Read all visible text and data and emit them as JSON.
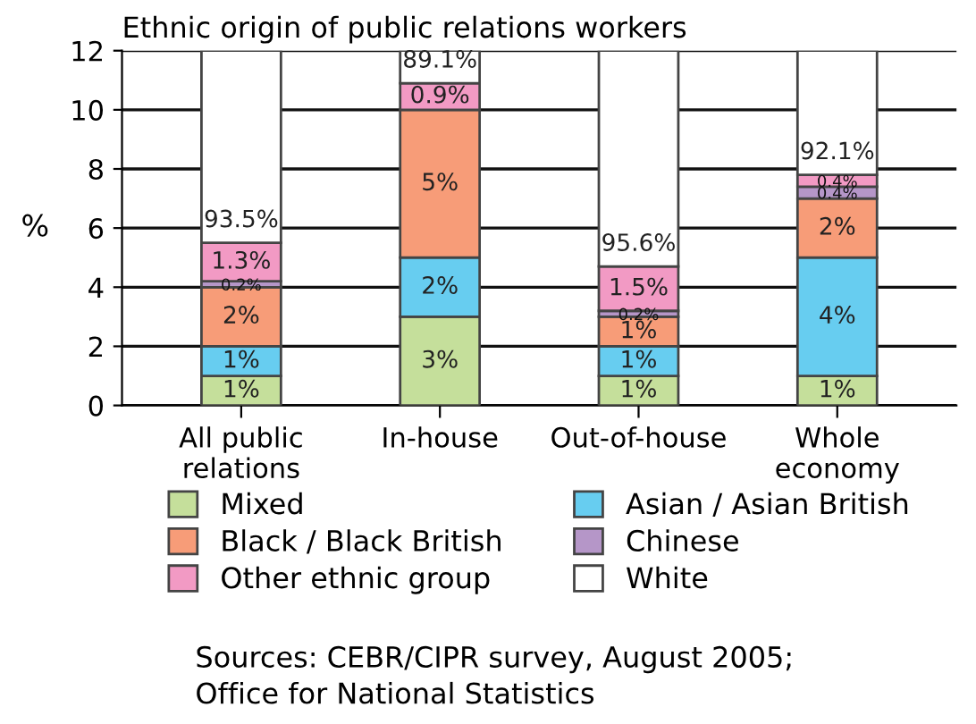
{
  "chart_data": {
    "type": "bar",
    "stacked": true,
    "title": "Ethnic origin of public relations workers",
    "ylabel": "%",
    "categories": [
      "All public\nrelations",
      "In-house",
      "Out-of-house",
      "Whole\neconomy"
    ],
    "series": [
      {
        "name": "Mixed",
        "color": "#c5df9b",
        "values": [
          1,
          3,
          1,
          1
        ],
        "value_labels": [
          "1%",
          "3%",
          "1%",
          "1%"
        ]
      },
      {
        "name": "Asian / Asian British",
        "color": "#67cdf0",
        "values": [
          1,
          2,
          1,
          4
        ],
        "value_labels": [
          "1%",
          "2%",
          "1%",
          "4%"
        ]
      },
      {
        "name": "Black / Black British",
        "color": "#f79c78",
        "values": [
          2,
          5,
          1,
          2
        ],
        "value_labels": [
          "2%",
          "5%",
          "1%",
          "2%"
        ]
      },
      {
        "name": "Chinese",
        "color": "#b596c8",
        "values": [
          0.2,
          null,
          0.2,
          0.4
        ],
        "value_labels": [
          "0.2%",
          null,
          "0.2%",
          "0.4%"
        ]
      },
      {
        "name": "Other ethnic group",
        "color": "#f29ac4",
        "values": [
          1.3,
          0.9,
          1.5,
          0.4
        ],
        "value_labels": [
          "1.3%",
          "0.9%",
          "1.5%",
          "0.4%"
        ]
      },
      {
        "name": "White",
        "color": "#ffffff",
        "values": [
          6.5,
          1.1,
          7.3,
          4.2
        ]
      }
    ],
    "ylim": [
      0,
      12
    ],
    "yticks": [
      0,
      2,
      4,
      6,
      8,
      10,
      12
    ],
    "grid": "y",
    "legend": "bottom",
    "annotations": [
      "93.5%",
      "89.1%",
      "95.6%",
      "92.1%",
      "Sources: CEBR/CIPR survey, August 2005;\nOffice for National Statistics"
    ]
  }
}
